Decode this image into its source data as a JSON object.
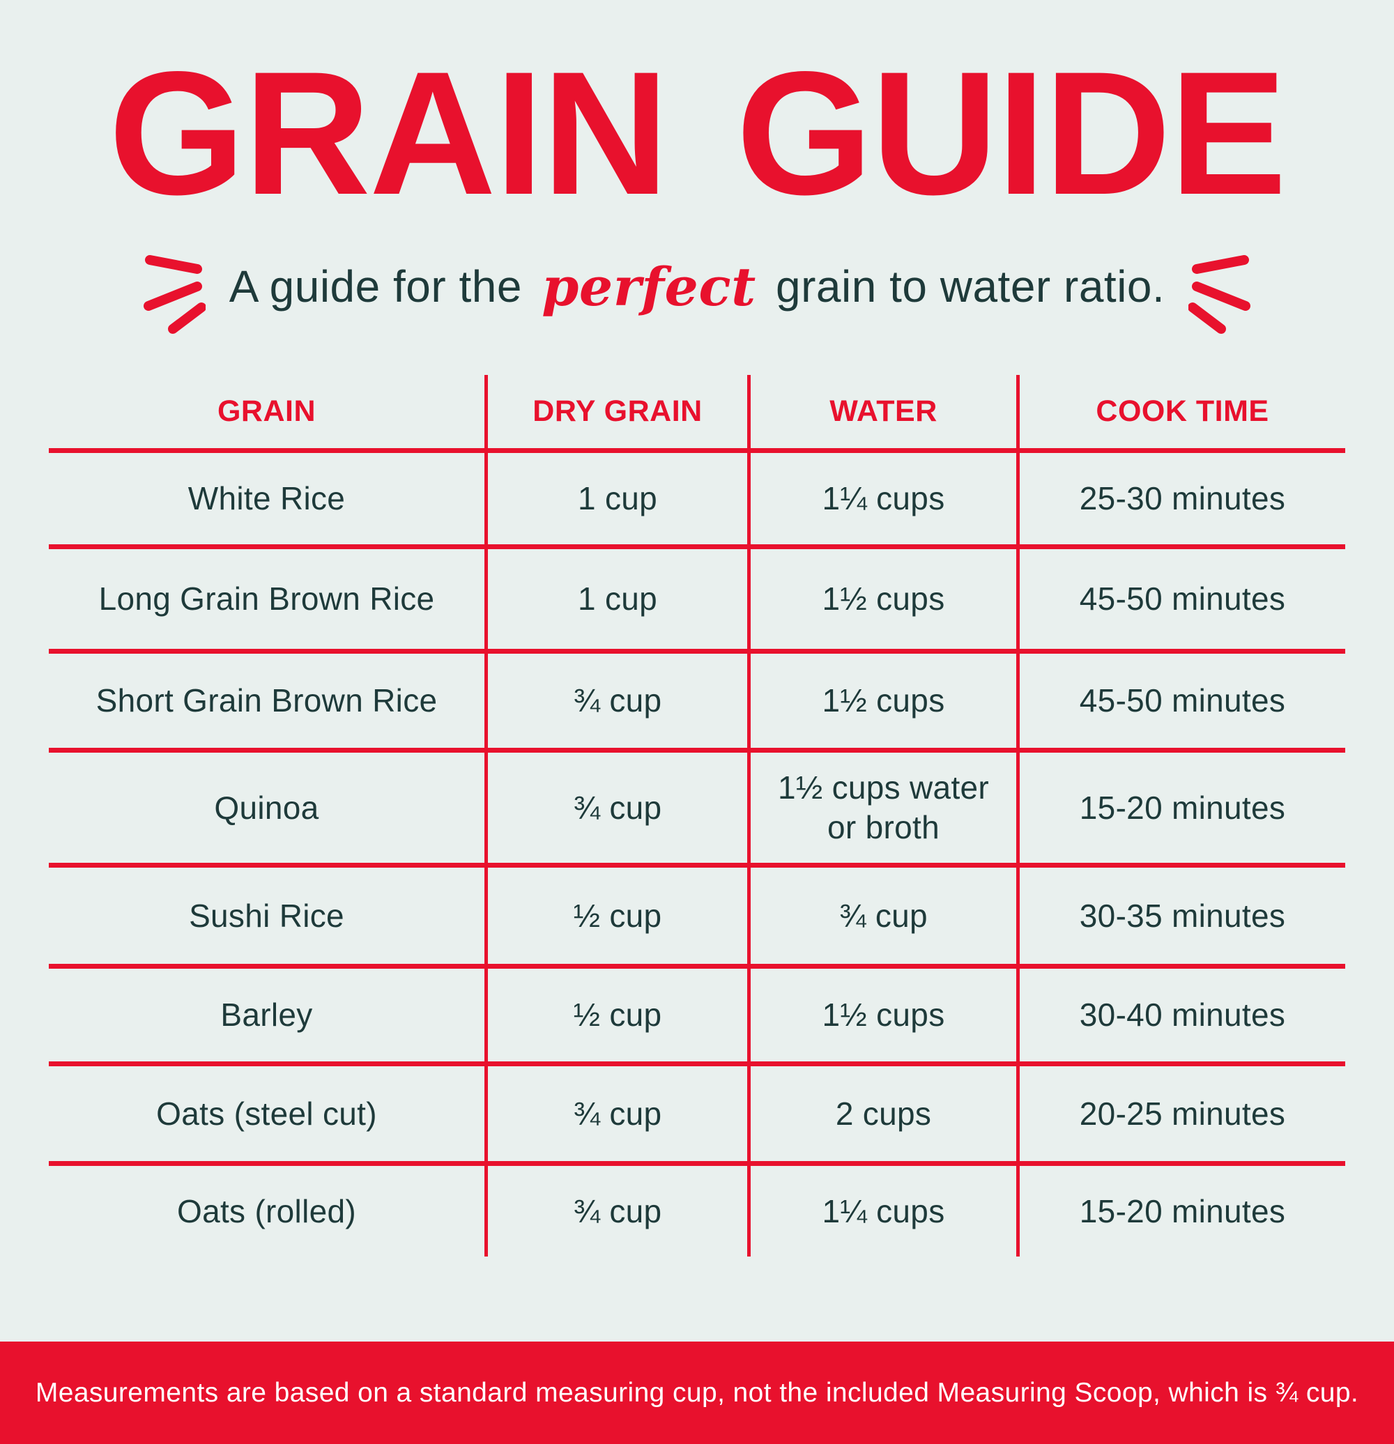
{
  "title": "GRAIN GUIDE",
  "subtitle": {
    "prefix": "A guide for the",
    "highlight": "perfect",
    "suffix": "grain to water ratio."
  },
  "footer_note": "Measurements are based on a standard measuring cup, not the included Measuring Scoop, which is ¾ cup.",
  "colors": {
    "red": "#e8112d",
    "background": "#e9f0ee",
    "text_dark": "#1e3a3a",
    "banner_text": "#ffffff"
  },
  "chart_data": {
    "type": "table",
    "title": "GRAIN GUIDE",
    "subtitle": "A guide for the perfect grain to water ratio.",
    "columns": [
      "GRAIN",
      "DRY GRAIN",
      "WATER",
      "COOK TIME"
    ],
    "rows": [
      [
        "White Rice",
        "1 cup",
        "1¼ cups",
        "25-30 minutes"
      ],
      [
        "Long Grain Brown Rice",
        "1 cup",
        "1½ cups",
        "45-50 minutes"
      ],
      [
        "Short Grain Brown Rice",
        "¾ cup",
        "1½ cups",
        "45-50 minutes"
      ],
      [
        "Quinoa",
        "¾ cup",
        "1½ cups water or broth",
        "15-20 minutes"
      ],
      [
        "Sushi Rice",
        "½ cup",
        "¾ cup",
        "30-35 minutes"
      ],
      [
        "Barley",
        "½ cup",
        "1½ cups",
        "30-40 minutes"
      ],
      [
        "Oats (steel cut)",
        "¾ cup",
        "2 cups",
        "20-25 minutes"
      ],
      [
        "Oats (rolled)",
        "¾ cup",
        "1¼ cups",
        "15-20 minutes"
      ]
    ],
    "note": "Measurements are based on a standard measuring cup, not the included Measuring Scoop, which is ¾ cup.",
    "layout": {
      "header_text_color": "red",
      "row_divider_color": "red",
      "column_divider_color": "red",
      "bottom_row_has_divider": false
    }
  }
}
